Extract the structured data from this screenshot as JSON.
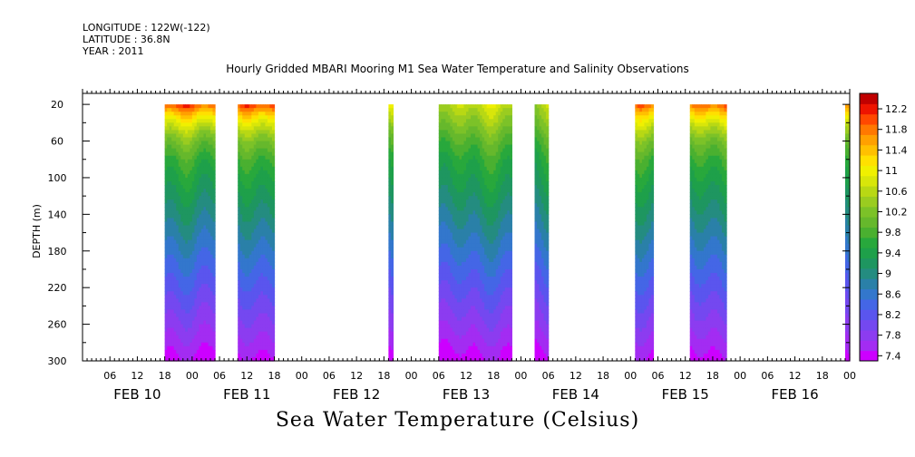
{
  "meta": {
    "longitude": "LONGITUDE : 122W(-122)",
    "latitude": "LATITUDE : 36.8N",
    "year": "YEAR : 2011"
  },
  "chart_data": {
    "type": "heatmap",
    "title": "Hourly Gridded MBARI Mooring M1 Sea Water Temperature and Salinity Observations",
    "xlabel": "Sea Water Temperature (Celsius)",
    "ylabel": "DEPTH (m)",
    "x_unit": "hours from FEB 10 00:00, 2011",
    "xlim": [
      0,
      168
    ],
    "ylim": [
      300,
      8
    ],
    "y_ticks": [
      20,
      60,
      100,
      140,
      180,
      220,
      260,
      300
    ],
    "hour_ticks": [
      "06",
      "12",
      "18",
      "00",
      "06",
      "12",
      "18",
      "00",
      "06",
      "12",
      "18",
      "00",
      "06",
      "12",
      "18",
      "00",
      "06",
      "12",
      "18",
      "00",
      "06",
      "12",
      "18",
      "00",
      "06",
      "12",
      "18",
      "00"
    ],
    "day_labels": [
      "FEB 10",
      "FEB 11",
      "FEB 12",
      "FEB 13",
      "FEB 14",
      "FEB 15",
      "FEB 16"
    ],
    "colorbar_labels": [
      "12.2",
      "11.8",
      "11.4",
      "11",
      "10.6",
      "10.2",
      "9.8",
      "9.4",
      "9",
      "8.6",
      "8.2",
      "7.8",
      "7.4"
    ],
    "color_levels": [
      7.4,
      7.6,
      7.8,
      8.0,
      8.2,
      8.4,
      8.6,
      8.8,
      9.0,
      9.2,
      9.4,
      9.6,
      9.8,
      10.0,
      10.2,
      10.4,
      10.6,
      10.8,
      11.0,
      11.2,
      11.4,
      11.6,
      11.8,
      12.0,
      12.2,
      12.4
    ],
    "colors": [
      "#cc00ff",
      "#a32cf2",
      "#8c3cf0",
      "#7448f0",
      "#5a55ee",
      "#4466e6",
      "#3377cc",
      "#2a80a8",
      "#248c80",
      "#1e9660",
      "#1ea04a",
      "#28a83c",
      "#4ab030",
      "#66b82c",
      "#7cc228",
      "#9acc20",
      "#b8d814",
      "#d8e60a",
      "#f0f000",
      "#ffe000",
      "#ffc000",
      "#ffa000",
      "#ff7800",
      "#ff4800",
      "#ee1400",
      "#c00000"
    ],
    "profiles": [
      {
        "depth": 20,
        "temp": 10.8
      },
      {
        "depth": 40,
        "temp": 10.4
      },
      {
        "depth": 60,
        "temp": 10.0
      },
      {
        "depth": 80,
        "temp": 9.7
      },
      {
        "depth": 100,
        "temp": 9.5
      },
      {
        "depth": 120,
        "temp": 9.3
      },
      {
        "depth": 140,
        "temp": 9.1
      },
      {
        "depth": 160,
        "temp": 8.9
      },
      {
        "depth": 180,
        "temp": 8.7
      },
      {
        "depth": 200,
        "temp": 8.5
      },
      {
        "depth": 220,
        "temp": 8.3
      },
      {
        "depth": 240,
        "temp": 8.1
      },
      {
        "depth": 260,
        "temp": 7.9
      },
      {
        "depth": 280,
        "temp": 7.7
      },
      {
        "depth": 300,
        "temp": 7.5
      }
    ],
    "segments": [
      {
        "start": 18,
        "end": 29,
        "surface_temp": 12.0
      },
      {
        "start": 34,
        "end": 42,
        "surface_temp": 12.0
      },
      {
        "start": 67,
        "end": 68,
        "surface_temp": 11.2
      },
      {
        "start": 78,
        "end": 94,
        "surface_temp": 10.8
      },
      {
        "start": 99,
        "end": 102,
        "surface_temp": 10.7
      },
      {
        "start": 121,
        "end": 125,
        "surface_temp": 11.8
      },
      {
        "start": 133,
        "end": 141,
        "surface_temp": 11.9
      },
      {
        "start": 167,
        "end": 168,
        "surface_temp": 11.8
      }
    ]
  }
}
